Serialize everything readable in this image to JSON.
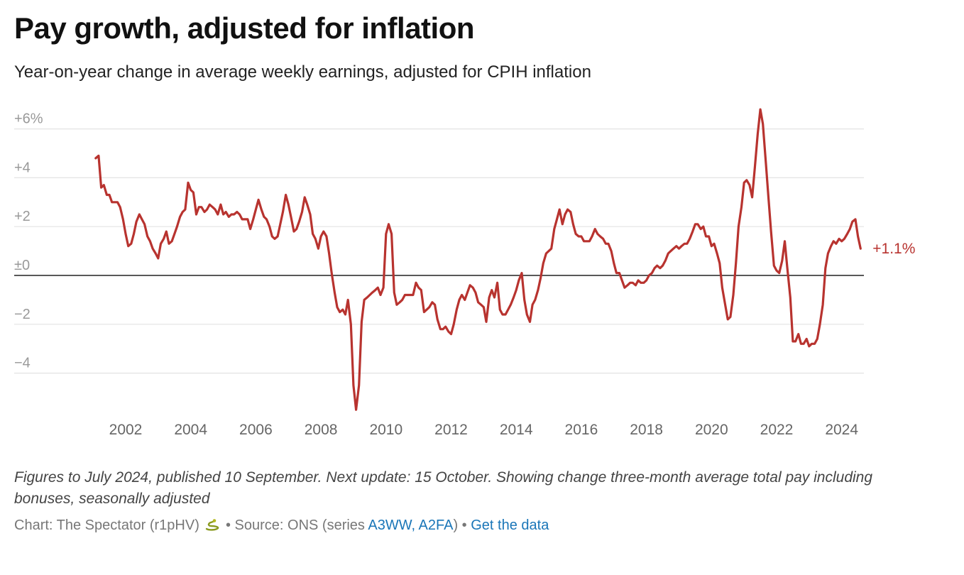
{
  "header": {
    "title": "Pay growth, adjusted for inflation",
    "subtitle": "Year-on-year change in average weekly earnings, adjusted for CPIH inflation"
  },
  "footer": {
    "notes": "Figures to July 2024, published 10 September. Next update: 15 October. Showing change three-month average total pay including bonuses, seasonally adjusted",
    "credit_prefix": "Chart: The Spectator (r1pHV)",
    "credit_icon": "snake-icon",
    "credit_sep1": " • Source: ONS (series ",
    "series_link": "A3WW, A2FA",
    "credit_close": ")",
    "credit_sep2": " • ",
    "get_data_link": "Get the data"
  },
  "colors": {
    "line": "#b8332f",
    "grid": "#e3e3e3",
    "zero_line": "#222222",
    "link": "#1a76b8"
  },
  "chart_data": {
    "type": "line",
    "title": "Pay growth, adjusted for inflation",
    "subtitle": "Year-on-year change in average weekly earnings, adjusted for CPIH inflation",
    "xlabel": "",
    "ylabel": "",
    "xlim": [
      2000.2,
      2025.2
    ],
    "ylim": [
      -5.7,
      7
    ],
    "x_ticks": [
      2002,
      2004,
      2006,
      2008,
      2010,
      2012,
      2014,
      2016,
      2018,
      2020,
      2022,
      2024
    ],
    "x_tick_labels": [
      "2002",
      "2004",
      "2006",
      "2008",
      "2010",
      "2012",
      "2014",
      "2016",
      "2018",
      "2020",
      "2022",
      "2024"
    ],
    "y_ticks": [
      6,
      4,
      2,
      0,
      -2,
      -4
    ],
    "y_tick_labels": [
      "+6%",
      "+4",
      "+2",
      "±0",
      "−2",
      "−4"
    ],
    "grid": true,
    "end_label": "+1.1%",
    "series": [
      {
        "color": "#b8332f",
        "points": [
          [
            2001.08,
            4.8
          ],
          [
            2001.17,
            4.9
          ],
          [
            2001.25,
            3.6
          ],
          [
            2001.33,
            3.7
          ],
          [
            2001.42,
            3.3
          ],
          [
            2001.5,
            3.3
          ],
          [
            2001.58,
            3.0
          ],
          [
            2001.67,
            3.0
          ],
          [
            2001.75,
            3.0
          ],
          [
            2001.83,
            2.8
          ],
          [
            2001.92,
            2.3
          ],
          [
            2002.0,
            1.7
          ],
          [
            2002.08,
            1.2
          ],
          [
            2002.17,
            1.3
          ],
          [
            2002.25,
            1.7
          ],
          [
            2002.33,
            2.2
          ],
          [
            2002.42,
            2.5
          ],
          [
            2002.5,
            2.3
          ],
          [
            2002.58,
            2.1
          ],
          [
            2002.67,
            1.6
          ],
          [
            2002.75,
            1.4
          ],
          [
            2002.83,
            1.1
          ],
          [
            2002.92,
            0.9
          ],
          [
            2003.0,
            0.7
          ],
          [
            2003.08,
            1.3
          ],
          [
            2003.17,
            1.5
          ],
          [
            2003.25,
            1.8
          ],
          [
            2003.33,
            1.3
          ],
          [
            2003.42,
            1.4
          ],
          [
            2003.5,
            1.7
          ],
          [
            2003.58,
            2.0
          ],
          [
            2003.67,
            2.4
          ],
          [
            2003.75,
            2.6
          ],
          [
            2003.83,
            2.7
          ],
          [
            2003.92,
            3.8
          ],
          [
            2004.0,
            3.5
          ],
          [
            2004.08,
            3.4
          ],
          [
            2004.17,
            2.5
          ],
          [
            2004.25,
            2.8
          ],
          [
            2004.33,
            2.8
          ],
          [
            2004.42,
            2.6
          ],
          [
            2004.5,
            2.7
          ],
          [
            2004.58,
            2.9
          ],
          [
            2004.67,
            2.8
          ],
          [
            2004.75,
            2.7
          ],
          [
            2004.83,
            2.5
          ],
          [
            2004.92,
            2.9
          ],
          [
            2005.0,
            2.5
          ],
          [
            2005.08,
            2.6
          ],
          [
            2005.17,
            2.4
          ],
          [
            2005.25,
            2.5
          ],
          [
            2005.33,
            2.5
          ],
          [
            2005.42,
            2.6
          ],
          [
            2005.5,
            2.5
          ],
          [
            2005.58,
            2.3
          ],
          [
            2005.67,
            2.3
          ],
          [
            2005.75,
            2.3
          ],
          [
            2005.83,
            1.9
          ],
          [
            2005.92,
            2.3
          ],
          [
            2006.0,
            2.7
          ],
          [
            2006.08,
            3.1
          ],
          [
            2006.17,
            2.7
          ],
          [
            2006.25,
            2.4
          ],
          [
            2006.33,
            2.3
          ],
          [
            2006.42,
            2.0
          ],
          [
            2006.5,
            1.6
          ],
          [
            2006.58,
            1.5
          ],
          [
            2006.67,
            1.6
          ],
          [
            2006.75,
            2.1
          ],
          [
            2006.83,
            2.6
          ],
          [
            2006.92,
            3.3
          ],
          [
            2007.0,
            2.9
          ],
          [
            2007.08,
            2.4
          ],
          [
            2007.17,
            1.8
          ],
          [
            2007.25,
            1.9
          ],
          [
            2007.33,
            2.2
          ],
          [
            2007.42,
            2.6
          ],
          [
            2007.5,
            3.2
          ],
          [
            2007.58,
            2.9
          ],
          [
            2007.67,
            2.5
          ],
          [
            2007.75,
            1.7
          ],
          [
            2007.83,
            1.5
          ],
          [
            2007.92,
            1.1
          ],
          [
            2008.0,
            1.6
          ],
          [
            2008.08,
            1.8
          ],
          [
            2008.17,
            1.6
          ],
          [
            2008.25,
            0.9
          ],
          [
            2008.33,
            0.1
          ],
          [
            2008.42,
            -0.7
          ],
          [
            2008.5,
            -1.3
          ],
          [
            2008.58,
            -1.5
          ],
          [
            2008.67,
            -1.4
          ],
          [
            2008.75,
            -1.6
          ],
          [
            2008.83,
            -1.0
          ],
          [
            2008.92,
            -2.0
          ],
          [
            2009.0,
            -4.5
          ],
          [
            2009.08,
            -5.5
          ],
          [
            2009.17,
            -4.5
          ],
          [
            2009.25,
            -1.9
          ],
          [
            2009.33,
            -1.0
          ],
          [
            2009.42,
            -0.9
          ],
          [
            2009.5,
            -0.8
          ],
          [
            2009.58,
            -0.7
          ],
          [
            2009.67,
            -0.6
          ],
          [
            2009.75,
            -0.5
          ],
          [
            2009.83,
            -0.8
          ],
          [
            2009.92,
            -0.5
          ],
          [
            2010.0,
            1.7
          ],
          [
            2010.08,
            2.1
          ],
          [
            2010.17,
            1.7
          ],
          [
            2010.25,
            -0.7
          ],
          [
            2010.33,
            -1.2
          ],
          [
            2010.42,
            -1.1
          ],
          [
            2010.5,
            -1.0
          ],
          [
            2010.58,
            -0.8
          ],
          [
            2010.67,
            -0.8
          ],
          [
            2010.75,
            -0.8
          ],
          [
            2010.83,
            -0.8
          ],
          [
            2010.92,
            -0.3
          ],
          [
            2011.0,
            -0.5
          ],
          [
            2011.08,
            -0.6
          ],
          [
            2011.17,
            -1.5
          ],
          [
            2011.25,
            -1.4
          ],
          [
            2011.33,
            -1.3
          ],
          [
            2011.42,
            -1.1
          ],
          [
            2011.5,
            -1.2
          ],
          [
            2011.58,
            -1.8
          ],
          [
            2011.67,
            -2.2
          ],
          [
            2011.75,
            -2.2
          ],
          [
            2011.83,
            -2.1
          ],
          [
            2011.92,
            -2.3
          ],
          [
            2012.0,
            -2.4
          ],
          [
            2012.08,
            -2.0
          ],
          [
            2012.17,
            -1.4
          ],
          [
            2012.25,
            -1.0
          ],
          [
            2012.33,
            -0.8
          ],
          [
            2012.42,
            -1.0
          ],
          [
            2012.5,
            -0.7
          ],
          [
            2012.58,
            -0.4
          ],
          [
            2012.67,
            -0.5
          ],
          [
            2012.75,
            -0.7
          ],
          [
            2012.83,
            -1.1
          ],
          [
            2012.92,
            -1.2
          ],
          [
            2013.0,
            -1.3
          ],
          [
            2013.08,
            -1.9
          ],
          [
            2013.17,
            -0.9
          ],
          [
            2013.25,
            -0.6
          ],
          [
            2013.33,
            -0.9
          ],
          [
            2013.42,
            -0.3
          ],
          [
            2013.5,
            -1.4
          ],
          [
            2013.58,
            -1.6
          ],
          [
            2013.67,
            -1.6
          ],
          [
            2013.75,
            -1.4
          ],
          [
            2013.83,
            -1.2
          ],
          [
            2013.92,
            -0.9
          ],
          [
            2014.0,
            -0.6
          ],
          [
            2014.08,
            -0.2
          ],
          [
            2014.17,
            0.1
          ],
          [
            2014.25,
            -1.0
          ],
          [
            2014.33,
            -1.6
          ],
          [
            2014.42,
            -1.9
          ],
          [
            2014.5,
            -1.2
          ],
          [
            2014.58,
            -1.0
          ],
          [
            2014.67,
            -0.6
          ],
          [
            2014.75,
            -0.1
          ],
          [
            2014.83,
            0.5
          ],
          [
            2014.92,
            0.9
          ],
          [
            2015.0,
            1.0
          ],
          [
            2015.08,
            1.1
          ],
          [
            2015.17,
            1.9
          ],
          [
            2015.25,
            2.3
          ],
          [
            2015.33,
            2.7
          ],
          [
            2015.42,
            2.1
          ],
          [
            2015.5,
            2.5
          ],
          [
            2015.58,
            2.7
          ],
          [
            2015.67,
            2.6
          ],
          [
            2015.75,
            2.1
          ],
          [
            2015.83,
            1.7
          ],
          [
            2015.92,
            1.6
          ],
          [
            2016.0,
            1.6
          ],
          [
            2016.08,
            1.4
          ],
          [
            2016.17,
            1.4
          ],
          [
            2016.25,
            1.4
          ],
          [
            2016.33,
            1.6
          ],
          [
            2016.42,
            1.9
          ],
          [
            2016.5,
            1.7
          ],
          [
            2016.58,
            1.6
          ],
          [
            2016.67,
            1.5
          ],
          [
            2016.75,
            1.3
          ],
          [
            2016.83,
            1.3
          ],
          [
            2016.92,
            1.0
          ],
          [
            2017.0,
            0.5
          ],
          [
            2017.08,
            0.1
          ],
          [
            2017.17,
            0.1
          ],
          [
            2017.25,
            -0.2
          ],
          [
            2017.33,
            -0.5
          ],
          [
            2017.42,
            -0.4
          ],
          [
            2017.5,
            -0.3
          ],
          [
            2017.58,
            -0.3
          ],
          [
            2017.67,
            -0.4
          ],
          [
            2017.75,
            -0.2
          ],
          [
            2017.83,
            -0.3
          ],
          [
            2017.92,
            -0.3
          ],
          [
            2018.0,
            -0.2
          ],
          [
            2018.08,
            0.0
          ],
          [
            2018.17,
            0.1
          ],
          [
            2018.25,
            0.3
          ],
          [
            2018.33,
            0.4
          ],
          [
            2018.42,
            0.3
          ],
          [
            2018.5,
            0.4
          ],
          [
            2018.58,
            0.6
          ],
          [
            2018.67,
            0.9
          ],
          [
            2018.75,
            1.0
          ],
          [
            2018.83,
            1.1
          ],
          [
            2018.92,
            1.2
          ],
          [
            2019.0,
            1.1
          ],
          [
            2019.08,
            1.2
          ],
          [
            2019.17,
            1.3
          ],
          [
            2019.25,
            1.3
          ],
          [
            2019.33,
            1.5
          ],
          [
            2019.42,
            1.8
          ],
          [
            2019.5,
            2.1
          ],
          [
            2019.58,
            2.1
          ],
          [
            2019.67,
            1.9
          ],
          [
            2019.75,
            2.0
          ],
          [
            2019.83,
            1.6
          ],
          [
            2019.92,
            1.6
          ],
          [
            2020.0,
            1.2
          ],
          [
            2020.08,
            1.3
          ],
          [
            2020.17,
            0.9
          ],
          [
            2020.25,
            0.5
          ],
          [
            2020.33,
            -0.5
          ],
          [
            2020.42,
            -1.2
          ],
          [
            2020.5,
            -1.8
          ],
          [
            2020.58,
            -1.7
          ],
          [
            2020.67,
            -0.8
          ],
          [
            2020.75,
            0.5
          ],
          [
            2020.83,
            2.0
          ],
          [
            2020.92,
            2.8
          ],
          [
            2021.0,
            3.8
          ],
          [
            2021.08,
            3.9
          ],
          [
            2021.17,
            3.7
          ],
          [
            2021.25,
            3.2
          ],
          [
            2021.33,
            4.4
          ],
          [
            2021.42,
            5.8
          ],
          [
            2021.5,
            6.8
          ],
          [
            2021.58,
            6.2
          ],
          [
            2021.67,
            4.6
          ],
          [
            2021.75,
            3.2
          ],
          [
            2021.83,
            1.8
          ],
          [
            2021.92,
            0.4
          ],
          [
            2022.0,
            0.2
          ],
          [
            2022.08,
            0.1
          ],
          [
            2022.17,
            0.6
          ],
          [
            2022.25,
            1.4
          ],
          [
            2022.33,
            0.3
          ],
          [
            2022.42,
            -0.9
          ],
          [
            2022.5,
            -2.7
          ],
          [
            2022.58,
            -2.7
          ],
          [
            2022.67,
            -2.4
          ],
          [
            2022.75,
            -2.8
          ],
          [
            2022.83,
            -2.8
          ],
          [
            2022.92,
            -2.6
          ],
          [
            2023.0,
            -2.9
          ],
          [
            2023.08,
            -2.8
          ],
          [
            2023.17,
            -2.8
          ],
          [
            2023.25,
            -2.6
          ],
          [
            2023.33,
            -2.0
          ],
          [
            2023.42,
            -1.2
          ],
          [
            2023.5,
            0.3
          ],
          [
            2023.58,
            0.9
          ],
          [
            2023.67,
            1.2
          ],
          [
            2023.75,
            1.4
          ],
          [
            2023.83,
            1.3
          ],
          [
            2023.92,
            1.5
          ],
          [
            2024.0,
            1.4
          ],
          [
            2024.08,
            1.5
          ],
          [
            2024.17,
            1.7
          ],
          [
            2024.25,
            1.9
          ],
          [
            2024.33,
            2.2
          ],
          [
            2024.42,
            2.3
          ],
          [
            2024.5,
            1.6
          ],
          [
            2024.58,
            1.1
          ]
        ]
      }
    ]
  }
}
